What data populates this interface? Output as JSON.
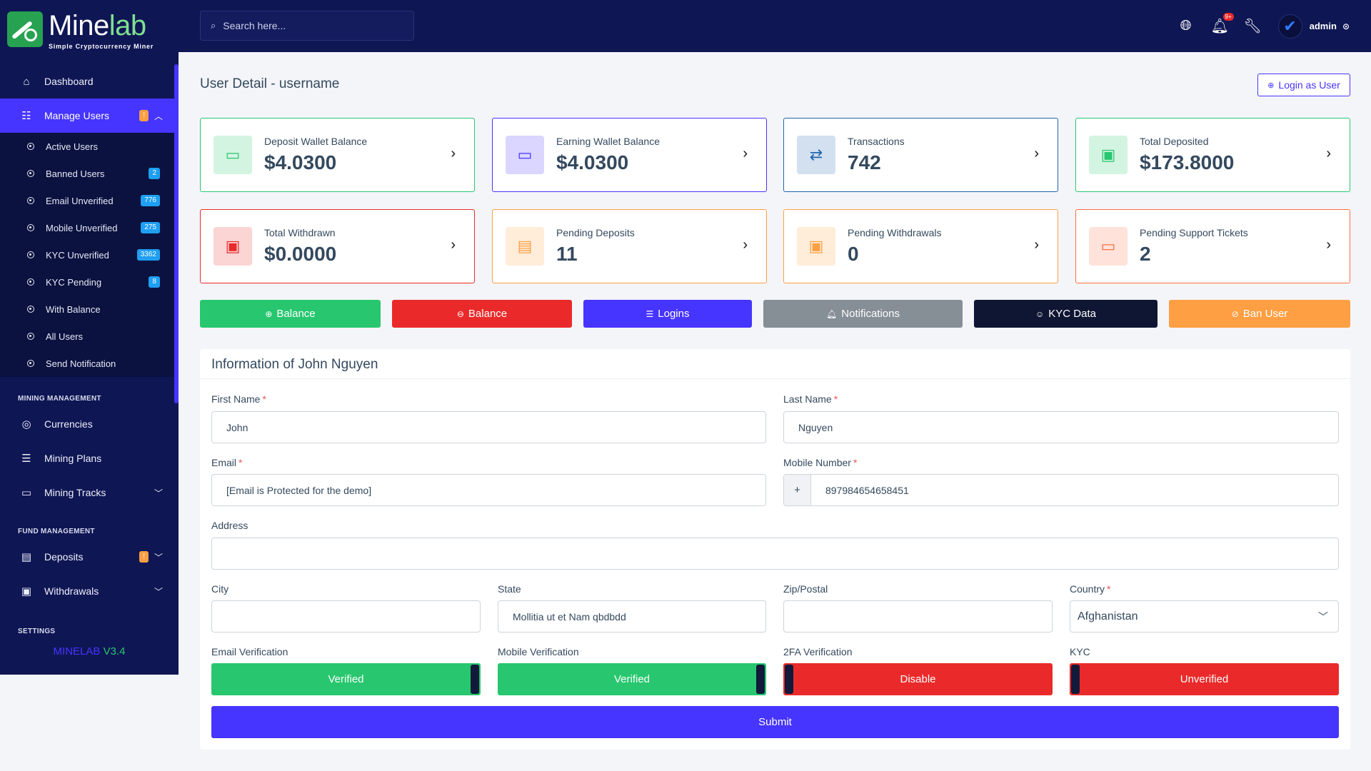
{
  "brand": {
    "name_a": "Mine",
    "name_b": "lab",
    "tagline": "Simple Cryptocurrency Miner"
  },
  "sidebar": {
    "dashboard": "Dashboard",
    "manage_users": {
      "label": "Manage Users",
      "badge": "!"
    },
    "sub_items": [
      {
        "label": "Active Users",
        "badge": ""
      },
      {
        "label": "Banned Users",
        "badge": "2"
      },
      {
        "label": "Email Unverified",
        "badge": "776"
      },
      {
        "label": "Mobile Unverified",
        "badge": "275"
      },
      {
        "label": "KYC Unverified",
        "badge": "3362"
      },
      {
        "label": "KYC Pending",
        "badge": "8"
      },
      {
        "label": "With Balance",
        "badge": ""
      },
      {
        "label": "All Users",
        "badge": ""
      },
      {
        "label": "Send Notification",
        "badge": ""
      }
    ],
    "section_mining": "MINING MANAGEMENT",
    "currencies": "Currencies",
    "mining_plans": "Mining Plans",
    "mining_tracks": "Mining Tracks",
    "section_fund": "FUND MANAGEMENT",
    "deposits": {
      "label": "Deposits",
      "badge": "!"
    },
    "withdrawals": "Withdrawals",
    "section_settings": "SETTINGS",
    "version_name": "MINELAB",
    "version_num": "V3.4"
  },
  "topbar": {
    "search_placeholder": "Search here...",
    "notif_badge": "9+",
    "admin": "admin"
  },
  "page": {
    "title": "User Detail - username",
    "login_as": "Login as User"
  },
  "cards": [
    {
      "label": "Deposit Wallet Balance",
      "value": "$4.0300",
      "color": "#28c76f",
      "icon": "money-icon"
    },
    {
      "label": "Earning Wallet Balance",
      "value": "$4.0300",
      "color": "#4634ff",
      "icon": "money-icon"
    },
    {
      "label": "Transactions",
      "value": "742",
      "color": "#1e63b0",
      "icon": "exchange-icon"
    },
    {
      "label": "Total Deposited",
      "value": "$173.8000",
      "color": "#28c76f",
      "icon": "wallet-icon"
    },
    {
      "label": "Total Withdrawn",
      "value": "$0.0000",
      "color": "#ea2a2a",
      "icon": "wallet-icon"
    },
    {
      "label": "Pending Deposits",
      "value": "11",
      "color": "#ff9f43",
      "icon": "invoice-icon"
    },
    {
      "label": "Pending Withdrawals",
      "value": "0",
      "color": "#ff9f43",
      "icon": "wallet-icon"
    },
    {
      "label": "Pending Support Tickets",
      "value": "2",
      "color": "#ff7043",
      "icon": "ticket-icon"
    }
  ],
  "actions": [
    {
      "label": "Balance",
      "color": "#28c76f"
    },
    {
      "label": "Balance",
      "color": "#ea2a2a"
    },
    {
      "label": "Logins",
      "color": "#4634ff"
    },
    {
      "label": "Notifications",
      "color": "#868e96"
    },
    {
      "label": "KYC Data",
      "color": "#0f1633"
    },
    {
      "label": "Ban User",
      "color": "#ff9f43"
    }
  ],
  "form": {
    "heading": "Information of John Nguyen",
    "first_name_label": "First Name",
    "first_name": "John",
    "last_name_label": "Last Name",
    "last_name": "Nguyen",
    "email_label": "Email",
    "email": "[Email is Protected for the demo]",
    "mobile_label": "Mobile Number",
    "mobile_prefix": "+",
    "mobile": "897984654658451",
    "address_label": "Address",
    "address": "",
    "city_label": "City",
    "city": "",
    "state_label": "State",
    "state": "Mollitia ut et Nam qbdbdd",
    "zip_label": "Zip/Postal",
    "zip": "",
    "country_label": "Country",
    "country": "Afghanistan",
    "ev_label": "Email Verification",
    "ev": "Verified",
    "mv_label": "Mobile Verification",
    "mv": "Verified",
    "tfa_label": "2FA Verification",
    "tfa": "Disable",
    "kyc_label": "KYC",
    "kyc": "Unverified",
    "required_mark": "*",
    "submit": "Submit"
  }
}
